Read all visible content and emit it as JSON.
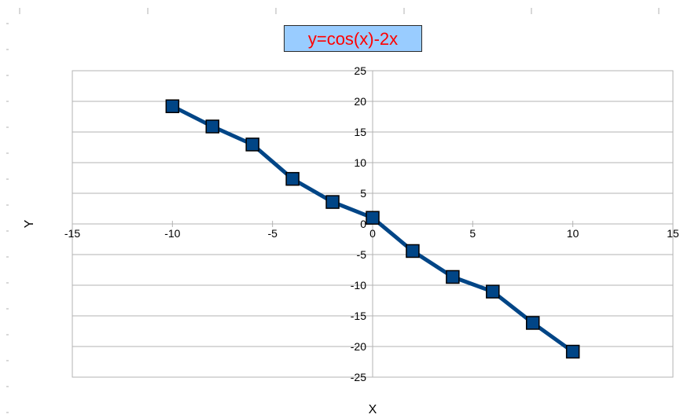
{
  "chart_data": {
    "type": "line",
    "title": "y=cos(x)-2x",
    "xlabel": "X",
    "ylabel": "Y",
    "xlim": [
      -15,
      15
    ],
    "ylim": [
      -25,
      25
    ],
    "x_ticks": [
      -15,
      -10,
      -5,
      0,
      5,
      10,
      15
    ],
    "y_ticks": [
      25,
      20,
      15,
      10,
      5,
      0,
      -5,
      -10,
      -15,
      -20,
      -25
    ],
    "grid": "horizontal",
    "legend": "none",
    "series": [
      {
        "x": [
          -10,
          -8,
          -6,
          -4,
          -2,
          0,
          2,
          4,
          6,
          8,
          10
        ],
        "y": [
          19.2,
          15.9,
          12.96,
          7.35,
          3.58,
          1,
          -4.42,
          -8.65,
          -11.04,
          -16.15,
          -20.84
        ],
        "color": "#004586",
        "marker": "square"
      }
    ]
  },
  "colors": {
    "title_text": "#ff0000",
    "title_background": "#99ccff",
    "line": "#004586",
    "grid": "#b3b3b3"
  }
}
